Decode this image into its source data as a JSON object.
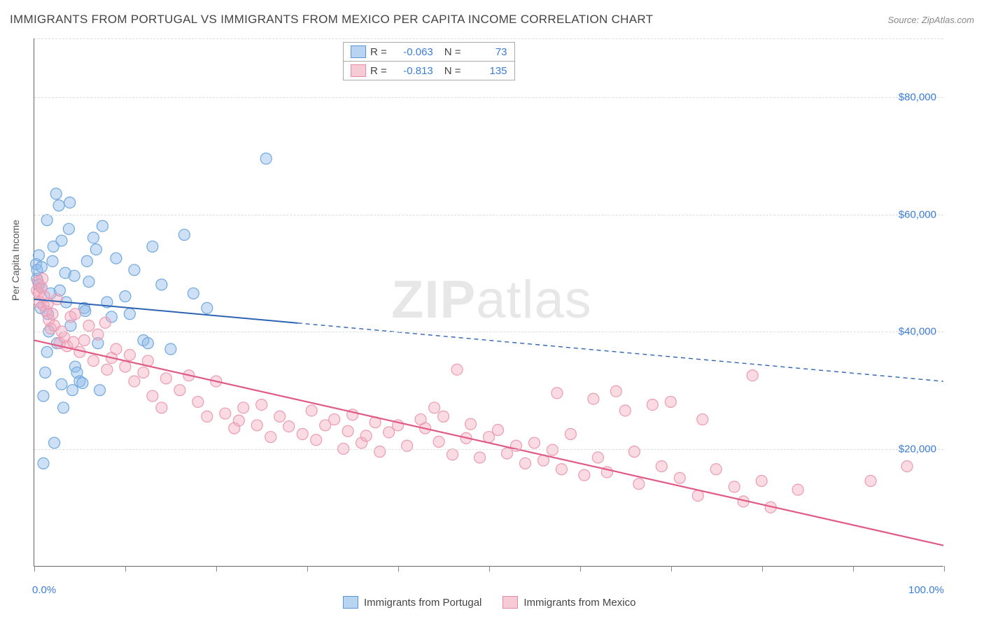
{
  "title": "IMMIGRANTS FROM PORTUGAL VS IMMIGRANTS FROM MEXICO PER CAPITA INCOME CORRELATION CHART",
  "source": "Source: ZipAtlas.com",
  "watermark": "ZIPatlas",
  "ylabel": "Per Capita Income",
  "chart": {
    "type": "scatter",
    "xlim": [
      0,
      100
    ],
    "ylim": [
      0,
      90000
    ],
    "x_ticks": [
      0,
      10,
      20,
      30,
      40,
      50,
      60,
      70,
      80,
      90,
      100
    ],
    "x_tick_labels": {
      "0": "0.0%",
      "100": "100.0%"
    },
    "y_gridlines": [
      20000,
      40000,
      60000,
      80000,
      90000
    ],
    "y_tick_labels": {
      "20000": "$20,000",
      "40000": "$40,000",
      "60000": "$60,000",
      "80000": "$80,000"
    },
    "background_color": "#ffffff",
    "grid_color": "#dddddd",
    "axis_color": "#666666",
    "tick_label_color": "#3b7dd8",
    "marker_radius": 8,
    "marker_stroke_width": 1.2,
    "series": [
      {
        "name": "Immigrants from Portugal",
        "color_fill": "rgba(144,186,233,0.45)",
        "color_stroke": "#6fa8e0",
        "swatch_fill": "#b9d4f0",
        "swatch_stroke": "#5b95d6",
        "R": "-0.063",
        "N": "73",
        "trend": {
          "start": [
            0,
            45500
          ],
          "solid_end_x": 29,
          "end": [
            100,
            31500
          ],
          "color": "#2e63b3",
          "width": 2,
          "dash": "6,5"
        },
        "points": [
          [
            0.2,
            51500
          ],
          [
            0.3,
            49000
          ],
          [
            0.3,
            50500
          ],
          [
            0.5,
            53000
          ],
          [
            0.5,
            48000
          ],
          [
            0.7,
            44000
          ],
          [
            0.8,
            47500
          ],
          [
            0.8,
            51000
          ],
          [
            1.0,
            29000
          ],
          [
            1.0,
            17500
          ],
          [
            1.2,
            33000
          ],
          [
            1.4,
            36500
          ],
          [
            1.4,
            59000
          ],
          [
            1.5,
            43000
          ],
          [
            1.6,
            40000
          ],
          [
            1.8,
            46500
          ],
          [
            2.0,
            52000
          ],
          [
            2.1,
            54500
          ],
          [
            2.2,
            21000
          ],
          [
            2.4,
            63500
          ],
          [
            2.5,
            38000
          ],
          [
            2.7,
            61500
          ],
          [
            2.8,
            47000
          ],
          [
            3.0,
            55500
          ],
          [
            3.0,
            31000
          ],
          [
            3.2,
            27000
          ],
          [
            3.4,
            50000
          ],
          [
            3.5,
            45000
          ],
          [
            3.8,
            57500
          ],
          [
            4.0,
            41000
          ],
          [
            4.2,
            30000
          ],
          [
            4.4,
            49500
          ],
          [
            4.5,
            34000
          ],
          [
            4.7,
            33000
          ],
          [
            5.0,
            31500
          ],
          [
            5.3,
            31200
          ],
          [
            5.5,
            44000
          ],
          [
            5.6,
            43500
          ],
          [
            5.8,
            52000
          ],
          [
            6.0,
            48500
          ],
          [
            6.5,
            56000
          ],
          [
            6.8,
            54000
          ],
          [
            7.0,
            38000
          ],
          [
            7.2,
            30000
          ],
          [
            7.5,
            58000
          ],
          [
            8.0,
            45000
          ],
          [
            8.5,
            42500
          ],
          [
            9.0,
            52500
          ],
          [
            10.0,
            46000
          ],
          [
            10.5,
            43000
          ],
          [
            11.0,
            50500
          ],
          [
            12.0,
            38500
          ],
          [
            12.5,
            38000
          ],
          [
            13.0,
            54500
          ],
          [
            14.0,
            48000
          ],
          [
            15.0,
            37000
          ],
          [
            16.5,
            56500
          ],
          [
            17.5,
            46500
          ],
          [
            19.0,
            44000
          ],
          [
            25.5,
            69500
          ],
          [
            3.9,
            62000
          ]
        ]
      },
      {
        "name": "Immigrants from Mexico",
        "color_fill": "rgba(244,170,190,0.42)",
        "color_stroke": "#ec9bb1",
        "swatch_fill": "#f6cbd6",
        "swatch_stroke": "#e98aa4",
        "R": "-0.813",
        "N": "135",
        "trend": {
          "start": [
            0,
            38500
          ],
          "solid_end_x": 100,
          "end": [
            100,
            3500
          ],
          "color": "#e05a85",
          "width": 2.2,
          "dash": null
        },
        "points": [
          [
            0.3,
            47000
          ],
          [
            0.4,
            48500
          ],
          [
            0.5,
            46500
          ],
          [
            0.6,
            45000
          ],
          [
            0.8,
            47500
          ],
          [
            0.9,
            49000
          ],
          [
            1.0,
            44500
          ],
          [
            1.1,
            46000
          ],
          [
            1.3,
            43500
          ],
          [
            1.5,
            44800
          ],
          [
            1.6,
            42000
          ],
          [
            1.8,
            40500
          ],
          [
            2.0,
            43000
          ],
          [
            2.2,
            41000
          ],
          [
            2.5,
            45500
          ],
          [
            2.8,
            38000
          ],
          [
            3.0,
            40000
          ],
          [
            3.3,
            39000
          ],
          [
            3.6,
            37500
          ],
          [
            4.0,
            42500
          ],
          [
            4.3,
            38200
          ],
          [
            4.5,
            43000
          ],
          [
            5.0,
            36500
          ],
          [
            5.5,
            38500
          ],
          [
            6.0,
            41000
          ],
          [
            6.5,
            35000
          ],
          [
            7.0,
            39500
          ],
          [
            7.8,
            41500
          ],
          [
            8.0,
            33500
          ],
          [
            8.5,
            35500
          ],
          [
            9.0,
            37000
          ],
          [
            10.0,
            34000
          ],
          [
            10.5,
            36000
          ],
          [
            11.0,
            31500
          ],
          [
            12.0,
            33000
          ],
          [
            12.5,
            35000
          ],
          [
            13.0,
            29000
          ],
          [
            14.0,
            27000
          ],
          [
            14.5,
            32000
          ],
          [
            16.0,
            30000
          ],
          [
            17.0,
            32500
          ],
          [
            18.0,
            28000
          ],
          [
            19.0,
            25500
          ],
          [
            20.0,
            31500
          ],
          [
            21.0,
            26000
          ],
          [
            22.0,
            23500
          ],
          [
            22.5,
            24800
          ],
          [
            23.0,
            27000
          ],
          [
            24.5,
            24000
          ],
          [
            25.0,
            27500
          ],
          [
            26.0,
            22000
          ],
          [
            27.0,
            25500
          ],
          [
            28.0,
            23800
          ],
          [
            29.5,
            22500
          ],
          [
            30.5,
            26500
          ],
          [
            31.0,
            21500
          ],
          [
            32.0,
            24000
          ],
          [
            33.0,
            25000
          ],
          [
            34.0,
            20000
          ],
          [
            34.5,
            23000
          ],
          [
            35.0,
            25800
          ],
          [
            36.0,
            21000
          ],
          [
            36.5,
            22200
          ],
          [
            37.5,
            24500
          ],
          [
            38.0,
            19500
          ],
          [
            39.0,
            22800
          ],
          [
            40.0,
            24000
          ],
          [
            41.0,
            20500
          ],
          [
            42.5,
            25000
          ],
          [
            43.0,
            23500
          ],
          [
            44.0,
            27000
          ],
          [
            44.5,
            21200
          ],
          [
            45.0,
            25500
          ],
          [
            46.0,
            19000
          ],
          [
            46.5,
            33500
          ],
          [
            47.5,
            21800
          ],
          [
            48.0,
            24200
          ],
          [
            49.0,
            18500
          ],
          [
            50.0,
            22000
          ],
          [
            51.0,
            23200
          ],
          [
            52.0,
            19200
          ],
          [
            53.0,
            20500
          ],
          [
            54.0,
            17500
          ],
          [
            55.0,
            21000
          ],
          [
            56.0,
            18000
          ],
          [
            57.0,
            19800
          ],
          [
            57.5,
            29500
          ],
          [
            58.0,
            16500
          ],
          [
            59.0,
            22500
          ],
          [
            60.5,
            15500
          ],
          [
            61.5,
            28500
          ],
          [
            62.0,
            18500
          ],
          [
            63.0,
            16000
          ],
          [
            64.0,
            29800
          ],
          [
            65.0,
            26500
          ],
          [
            66.0,
            19500
          ],
          [
            66.5,
            14000
          ],
          [
            68.0,
            27500
          ],
          [
            69.0,
            17000
          ],
          [
            70.0,
            28000
          ],
          [
            71.0,
            15000
          ],
          [
            73.0,
            12000
          ],
          [
            73.5,
            25000
          ],
          [
            75.0,
            16500
          ],
          [
            77.0,
            13500
          ],
          [
            78.0,
            11000
          ],
          [
            79.0,
            32500
          ],
          [
            80.0,
            14500
          ],
          [
            81.0,
            10000
          ],
          [
            84.0,
            13000
          ],
          [
            92.0,
            14500
          ],
          [
            96.0,
            17000
          ]
        ]
      }
    ]
  },
  "legend_top": {
    "R_label": "R =",
    "N_label": "N ="
  },
  "legend_bottom": {
    "items": [
      "Immigrants from Portugal",
      "Immigrants from Mexico"
    ]
  }
}
